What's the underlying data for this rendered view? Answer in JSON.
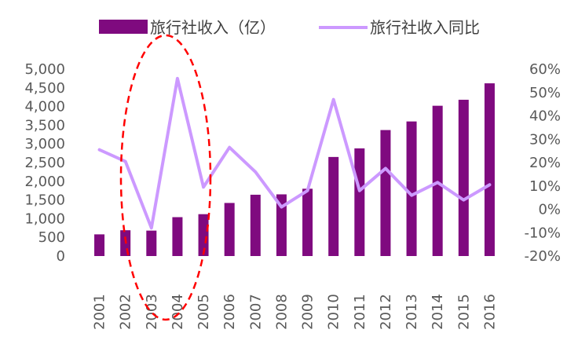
{
  "chart_data": {
    "type": "bar+line",
    "categories": [
      "2001",
      "2002",
      "2003",
      "2004",
      "2005",
      "2006",
      "2007",
      "2008",
      "2009",
      "2010",
      "2011",
      "2012",
      "2013",
      "2014",
      "2015",
      "2016"
    ],
    "series": [
      {
        "name": "旅行社收入（亿）",
        "type": "bar",
        "axis": "left",
        "color": "#7f0a7f",
        "values": [
          580,
          690,
          680,
          1040,
          1120,
          1420,
          1640,
          1650,
          1800,
          2650,
          2880,
          3370,
          3600,
          4020,
          4180,
          4620
        ]
      },
      {
        "name": "旅行社收入同比",
        "type": "line",
        "axis": "right",
        "unit": "%",
        "color": "#cc99ff",
        "values": [
          25.5,
          20.5,
          -8,
          56,
          9.5,
          26.5,
          16,
          1,
          8,
          47,
          8,
          17.5,
          6,
          11.5,
          4,
          10.5
        ]
      }
    ],
    "y_left": {
      "min": 0,
      "max": 5000,
      "ticks": [
        "0",
        "500",
        "1,000",
        "1,500",
        "2,000",
        "2,500",
        "3,000",
        "3,500",
        "4,000",
        "4,500",
        "5,000"
      ]
    },
    "y_right": {
      "min": -20,
      "max": 60,
      "ticks": [
        "-20%",
        "-10%",
        "0%",
        "10%",
        "20%",
        "30%",
        "40%",
        "50%",
        "60%"
      ]
    },
    "legend_position": "top",
    "grid": false,
    "annotation": {
      "shape": "dashed-ellipse",
      "color": "#ff0000",
      "covers": [
        "2003",
        "2004"
      ]
    }
  }
}
